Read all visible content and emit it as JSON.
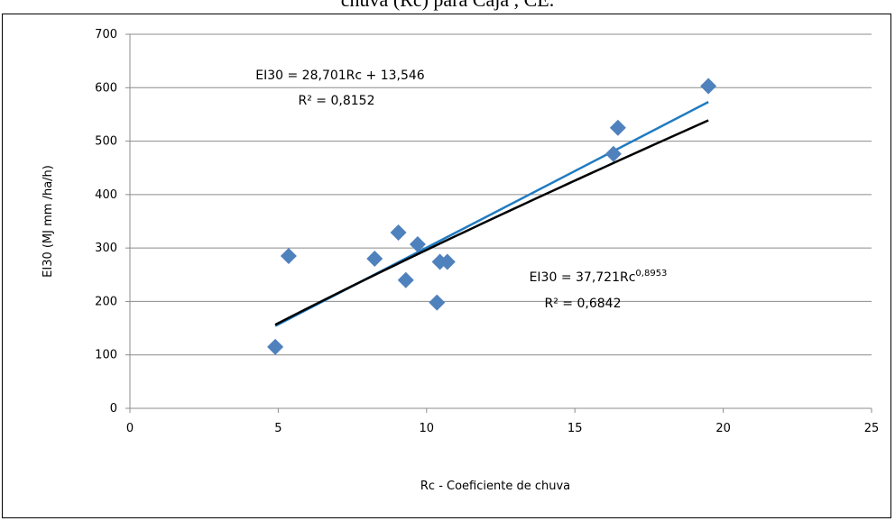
{
  "caption": "chuva (Rc) para Cajá , CE.",
  "chart_data": {
    "type": "scatter",
    "title": "",
    "xlabel": "Rc - Coeficiente de chuva",
    "ylabel": "EI30 (MJ mm /ha/h)",
    "xlim": [
      0,
      25
    ],
    "ylim": [
      0,
      700
    ],
    "xticks": [
      0,
      5,
      10,
      15,
      20,
      25
    ],
    "yticks": [
      0,
      100,
      200,
      300,
      400,
      500,
      600,
      700
    ],
    "grid": true,
    "series": [
      {
        "marker": "diamond",
        "color": "#4f81bd",
        "points": [
          {
            "x": 4.9,
            "y": 115
          },
          {
            "x": 5.35,
            "y": 285
          },
          {
            "x": 8.25,
            "y": 280
          },
          {
            "x": 9.05,
            "y": 329
          },
          {
            "x": 9.3,
            "y": 240
          },
          {
            "x": 9.7,
            "y": 307
          },
          {
            "x": 10.35,
            "y": 198
          },
          {
            "x": 10.45,
            "y": 274
          },
          {
            "x": 10.7,
            "y": 274
          },
          {
            "x": 16.3,
            "y": 476
          },
          {
            "x": 16.45,
            "y": 525
          },
          {
            "x": 19.5,
            "y": 603
          }
        ]
      }
    ],
    "trendlines": [
      {
        "kind": "linear",
        "color": "#1f7bc1",
        "equation": "EI30 = 28,701Rc + 13,546",
        "r2": "R² = 0,8152",
        "slope": 28.701,
        "intercept": 13.546,
        "x_range": [
          4.9,
          19.5
        ]
      },
      {
        "kind": "power",
        "color": "#000000",
        "equation_prefix": "EI30 = 37,721Rc",
        "equation_exponent": "0,8953",
        "r2": "R² = 0,6842",
        "coefficient": 37.721,
        "exponent": 0.8953,
        "x_range": [
          4.9,
          19.5
        ]
      }
    ]
  }
}
